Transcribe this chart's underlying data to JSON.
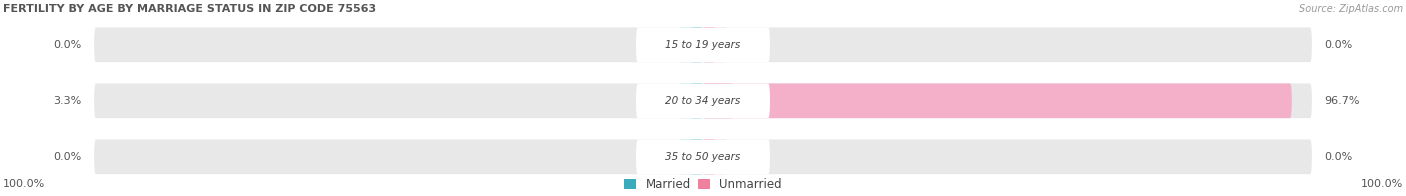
{
  "title": "FERTILITY BY AGE BY MARRIAGE STATUS IN ZIP CODE 75563",
  "source": "Source: ZipAtlas.com",
  "categories": [
    "15 to 19 years",
    "20 to 34 years",
    "35 to 50 years"
  ],
  "married": [
    0.0,
    3.3,
    0.0
  ],
  "unmarried": [
    0.0,
    96.7,
    0.0
  ],
  "married_light_color": "#88cdd8",
  "married_dark_color": "#2ba8bc",
  "unmarried_light_color": "#f4b0c8",
  "unmarried_dark_color": "#e8607f",
  "bar_bg_color": "#e8e8e8",
  "title_color": "#555555",
  "source_color": "#999999",
  "label_color": "#555555",
  "legend_married_color": "#3aabbc",
  "legend_unmarried_color": "#f080a0",
  "left_axis_label": "100.0%",
  "right_axis_label": "100.0%",
  "max_val": 100.0,
  "figsize": [
    14.06,
    1.96
  ],
  "dpi": 100
}
